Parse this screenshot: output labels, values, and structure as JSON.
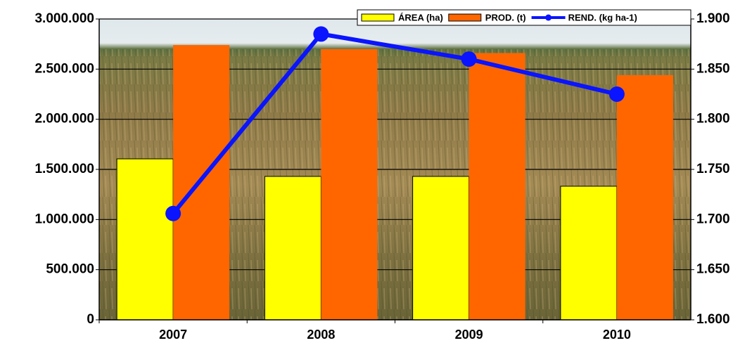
{
  "chart_data": {
    "type": "bar",
    "categories": [
      "2007",
      "2008",
      "2009",
      "2010"
    ],
    "series": [
      {
        "name": "ÁREA (ha)",
        "type": "bar",
        "color": "#ffff00",
        "axis": "y",
        "values": [
          1605000,
          1430000,
          1430000,
          1332000
        ]
      },
      {
        "name": "PROD. (t)",
        "type": "bar",
        "color": "#ff6600",
        "axis": "y",
        "values": [
          2740000,
          2700000,
          2660000,
          2440000
        ]
      },
      {
        "name": "REND. (kg ha-1)",
        "type": "line",
        "color": "#0a14ff",
        "axis": "y2",
        "values": [
          1706,
          1885,
          1860,
          1825
        ]
      }
    ],
    "ylim": [
      0,
      3000000
    ],
    "yticks": [
      0,
      {
        "value": 500000,
        "label": "500.000"
      },
      {
        "value": 1000000,
        "label": "1.000.000"
      },
      {
        "value": 1500000,
        "label": "1.500.000"
      },
      {
        "value": 2000000,
        "label": "2.000.000"
      },
      {
        "value": 2500000,
        "label": "2.500.000"
      },
      {
        "value": 3000000,
        "label": "3.000.000"
      }
    ],
    "y2lim": [
      1600,
      1900
    ],
    "y2ticks": [
      {
        "value": 1600,
        "label": "1.600"
      },
      {
        "value": 1650,
        "label": "1.650"
      },
      {
        "value": 1700,
        "label": "1.700"
      },
      {
        "value": 1750,
        "label": "1.750"
      },
      {
        "value": 1800,
        "label": "1.800"
      },
      {
        "value": 1850,
        "label": "1.850"
      },
      {
        "value": 1900,
        "label": "1.900"
      }
    ],
    "grid": true,
    "legend": "top-right"
  }
}
